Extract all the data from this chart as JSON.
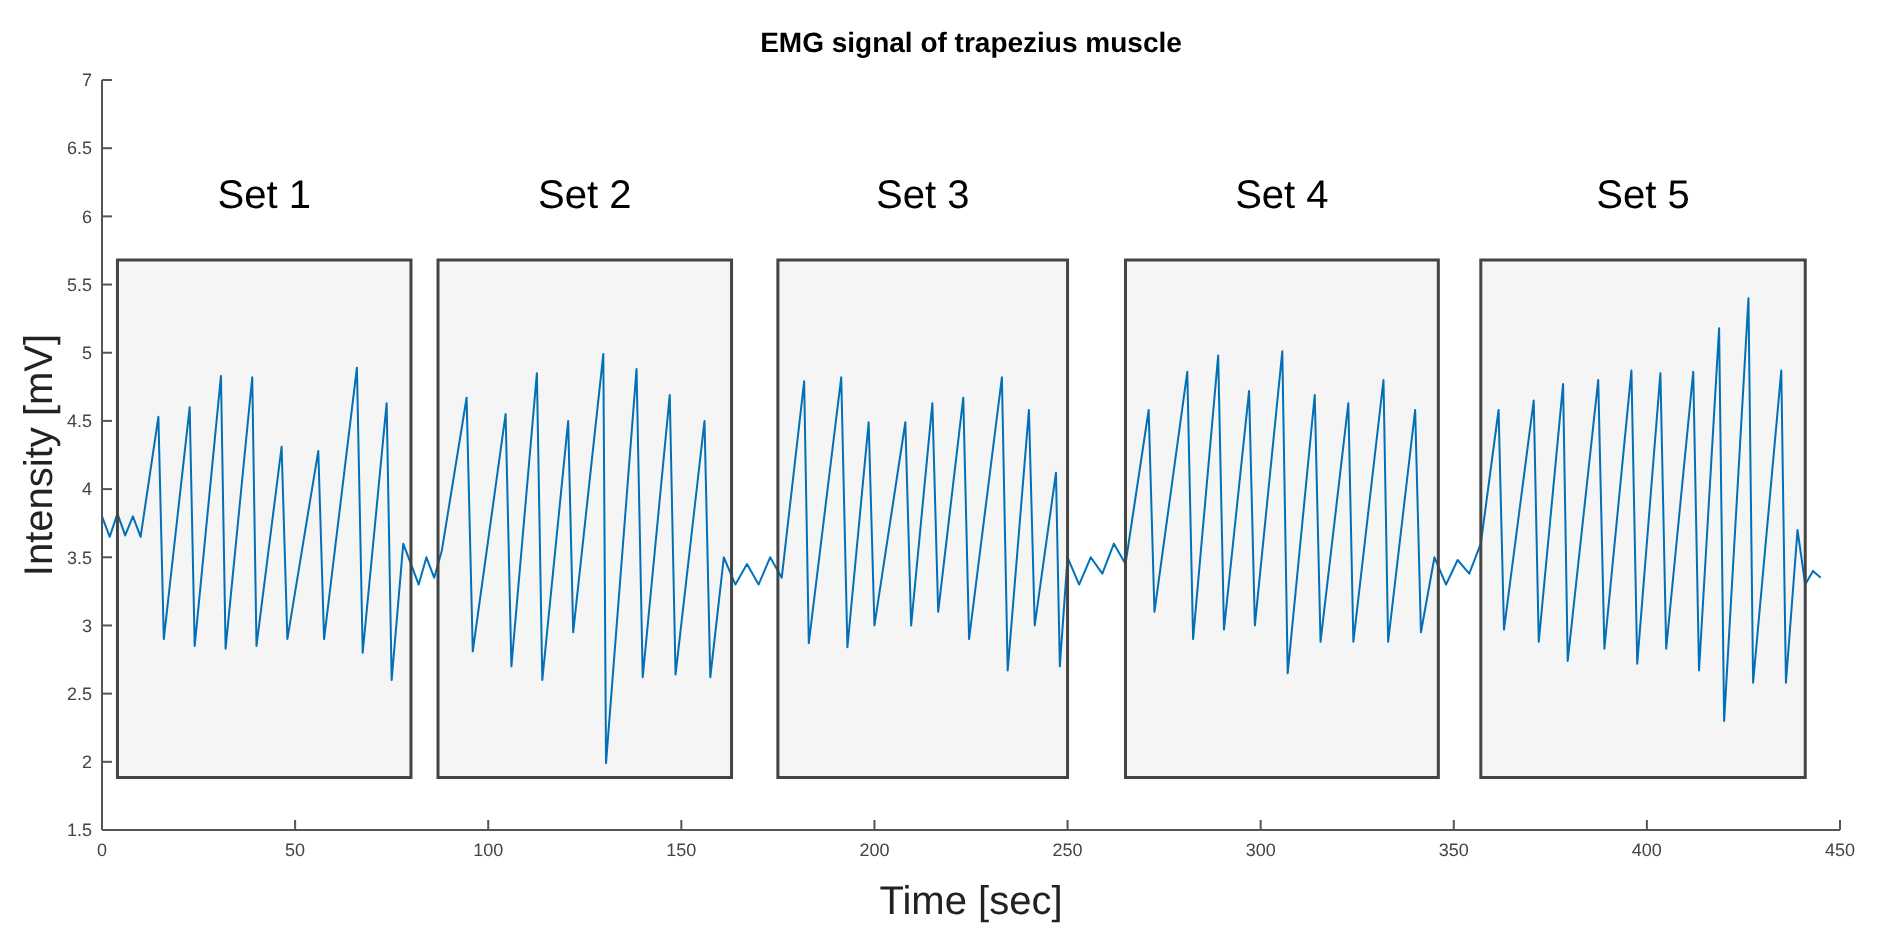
{
  "chart_data": {
    "type": "line",
    "title": "EMG signal of trapezius muscle",
    "xlabel": "Time [sec]",
    "ylabel": "Intensity [mV]",
    "xlim": [
      0,
      450
    ],
    "xticks": [
      0,
      50,
      100,
      150,
      200,
      250,
      300,
      350,
      400,
      450
    ],
    "ylim": [
      1.5,
      7
    ],
    "yticks": [
      1.5,
      2,
      2.5,
      3,
      3.5,
      4,
      4.5,
      5,
      5.5,
      6,
      6.5,
      7
    ],
    "grid": false,
    "line_style": "solid",
    "series": [
      {
        "color": "#0072bd",
        "x": [
          0,
          2,
          4,
          6,
          8,
          10,
          14.6,
          16,
          22.7,
          24,
          30.8,
          32,
          38.9,
          40,
          46.5,
          48,
          56,
          57.5,
          66,
          67.5,
          73.7,
          75,
          78,
          80,
          82,
          84,
          86,
          88,
          94.4,
          96,
          104.5,
          106,
          112.6,
          114,
          120.7,
          122,
          129.8,
          130.5,
          138.4,
          140,
          147,
          148.5,
          156,
          157.5,
          161,
          164,
          167,
          170,
          173,
          176,
          181.8,
          183,
          191.4,
          193,
          198.5,
          200,
          208,
          209.5,
          215,
          216.5,
          223,
          224.5,
          233,
          234.5,
          240,
          241.5,
          247,
          248,
          250,
          253,
          256,
          259,
          262,
          265,
          271,
          272.5,
          281,
          282.5,
          289,
          290.5,
          297,
          298.5,
          305.6,
          307,
          314,
          315.5,
          322.7,
          324,
          331.8,
          333,
          340,
          341.5,
          345,
          348,
          351,
          354,
          357,
          361.6,
          363,
          370.7,
          372,
          378.3,
          379.5,
          387.4,
          389,
          396,
          397.5,
          403.5,
          405,
          412,
          413.5,
          418.7,
          420,
          426.3,
          427.5,
          434.8,
          436,
          439,
          441,
          443,
          445
        ],
        "values": [
          3.8,
          3.65,
          3.82,
          3.66,
          3.8,
          3.65,
          4.53,
          2.9,
          4.6,
          2.85,
          4.83,
          2.83,
          4.82,
          2.85,
          4.31,
          2.9,
          4.28,
          2.9,
          4.89,
          2.8,
          4.63,
          2.6,
          3.6,
          3.45,
          3.3,
          3.5,
          3.35,
          3.55,
          4.67,
          2.81,
          4.55,
          2.7,
          4.85,
          2.6,
          4.5,
          2.95,
          4.99,
          1.99,
          4.88,
          2.62,
          4.69,
          2.64,
          4.5,
          2.62,
          3.5,
          3.3,
          3.45,
          3.3,
          3.5,
          3.35,
          4.79,
          2.87,
          4.82,
          2.84,
          4.49,
          3.0,
          4.49,
          3.0,
          4.63,
          3.1,
          4.67,
          2.9,
          4.82,
          2.67,
          4.58,
          3.0,
          4.12,
          2.7,
          3.5,
          3.3,
          3.5,
          3.38,
          3.6,
          3.45,
          4.58,
          3.1,
          4.86,
          2.9,
          4.98,
          2.97,
          4.72,
          3.0,
          5.01,
          2.65,
          4.69,
          2.88,
          4.63,
          2.88,
          4.8,
          2.88,
          4.58,
          2.95,
          3.5,
          3.3,
          3.48,
          3.38,
          3.6,
          4.58,
          2.97,
          4.65,
          2.88,
          4.77,
          2.74,
          4.8,
          2.83,
          4.87,
          2.72,
          4.85,
          2.83,
          4.86,
          2.67,
          5.18,
          2.3,
          5.4,
          2.58,
          4.87,
          2.58,
          3.7,
          3.3,
          3.4,
          3.35
        ]
      }
    ],
    "bands": [
      {
        "axis": "x",
        "from": 4,
        "to": 80,
        "label": "Set 1",
        "color": "#444444"
      },
      {
        "axis": "x",
        "from": 87,
        "to": 163,
        "label": "Set 2",
        "color": "#444444"
      },
      {
        "axis": "x",
        "from": 175,
        "to": 250,
        "label": "Set 3",
        "color": "#444444"
      },
      {
        "axis": "x",
        "from": 265,
        "to": 346,
        "label": "Set 4",
        "color": "#444444"
      },
      {
        "axis": "x",
        "from": 357,
        "to": 441,
        "label": "Set 5",
        "color": "#444444"
      }
    ]
  }
}
